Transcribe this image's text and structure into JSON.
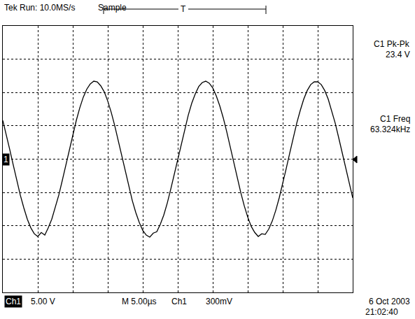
{
  "chart_data": {
    "type": "line",
    "color": "#000000",
    "grid": true,
    "tick_labels": false,
    "xlim": [
      0,
      50
    ],
    "xticks": [
      0,
      5,
      10,
      15,
      20,
      25,
      30,
      35,
      40,
      45,
      50
    ],
    "ylim": [
      -20,
      20
    ],
    "yticks": [
      -20,
      -15,
      -10,
      -5,
      0,
      5,
      10,
      15,
      20
    ],
    "annotations": [
      "Tek Run: 10.0MS/s",
      "Sample",
      "T",
      "C1 Pk-Pk",
      "23.4 V",
      "C1 Freq",
      "63.324kHz",
      "1",
      "Ch1",
      "5.00 V",
      "M 5.00µs",
      "Ch1",
      "300mV",
      "6 Oct 2003",
      "21:02:40"
    ],
    "x": [
      0,
      0.5,
      1,
      1.5,
      2,
      2.5,
      3,
      3.5,
      4,
      4.5,
      5,
      5.5,
      6,
      6.5,
      7,
      7.5,
      8,
      8.5,
      9,
      9.5,
      10,
      10.5,
      11,
      11.5,
      12,
      12.5,
      13,
      13.5,
      14,
      14.5,
      15,
      15.5,
      16,
      16.5,
      17,
      17.5,
      18,
      18.5,
      19,
      19.5,
      20,
      20.5,
      21,
      21.5,
      22,
      22.5,
      23,
      23.5,
      24,
      24.5,
      25,
      25.5,
      26,
      26.5,
      27,
      27.5,
      28,
      28.5,
      29,
      29.5,
      30,
      30.5,
      31,
      31.5,
      32,
      32.5,
      33,
      33.5,
      34,
      34.5,
      35,
      35.5,
      36,
      36.5,
      37,
      37.5,
      38,
      38.5,
      39,
      39.5,
      40,
      40.5,
      41,
      41.5,
      42,
      42.5,
      43,
      43.5,
      44,
      44.5,
      45,
      45.5,
      46,
      46.5,
      47,
      47.5,
      48,
      48.5,
      49,
      49.5,
      50
    ],
    "values": [
      5.8,
      3.7,
      1.4,
      -0.9,
      -3.2,
      -5.4,
      -7.3,
      -9.0,
      -10.3,
      -11.2,
      -11.6,
      -11.0,
      -11.4,
      -10.3,
      -9.0,
      -7.3,
      -5.4,
      -3.2,
      -0.9,
      1.4,
      3.7,
      5.8,
      7.7,
      9.3,
      10.5,
      11.3,
      11.7,
      11.6,
      11.0,
      10.1,
      8.7,
      7.0,
      5.0,
      2.8,
      0.5,
      -1.8,
      -4.1,
      -6.2,
      -8.0,
      -9.5,
      -10.7,
      -11.4,
      -11.7,
      -11.1,
      -10.9,
      -9.8,
      -8.4,
      -6.6,
      -4.5,
      -2.3,
      0,
      2.3,
      4.5,
      6.6,
      8.4,
      9.8,
      10.9,
      11.5,
      11.7,
      11.4,
      10.7,
      9.5,
      8.0,
      6.2,
      4.1,
      1.8,
      -0.5,
      -2.8,
      -5.0,
      -7.0,
      -8.7,
      -10.1,
      -11.0,
      -11.6,
      -11.2,
      -11.3,
      -10.5,
      -9.3,
      -7.7,
      -5.8,
      -3.7,
      -1.4,
      0.9,
      3.2,
      5.4,
      7.3,
      9.0,
      10.3,
      11.2,
      11.6,
      11.6,
      11.2,
      10.3,
      9.0,
      7.3,
      5.4,
      3.2,
      0.9,
      -1.4,
      -3.7,
      -5.8
    ]
  }
}
